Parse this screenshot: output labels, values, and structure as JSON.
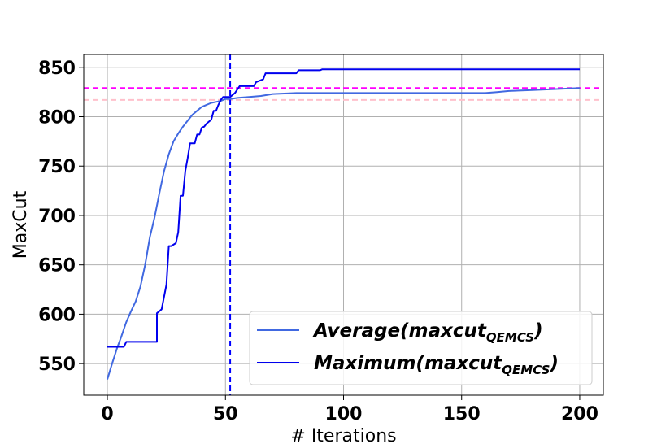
{
  "chart_data": {
    "type": "line",
    "xlabel": "# Iterations",
    "ylabel": "MaxCut",
    "xlim": [
      -10,
      210
    ],
    "ylim": [
      518,
      863
    ],
    "xticks": [
      0,
      50,
      100,
      150,
      200
    ],
    "yticks": [
      550,
      600,
      650,
      700,
      750,
      800,
      850
    ],
    "grid": true,
    "legend_position": "lower-right",
    "series": [
      {
        "name": "Average(maxcut",
        "name_subscript": "QEMCS",
        "name_close": ")",
        "color": "#4169e1",
        "x": [
          0,
          2,
          4,
          6,
          8,
          10,
          12,
          14,
          16,
          18,
          20,
          22,
          24,
          26,
          28,
          30,
          32,
          34,
          36,
          38,
          40,
          42,
          44,
          46,
          48,
          50,
          52,
          55,
          60,
          65,
          70,
          80,
          90,
          100,
          120,
          140,
          160,
          165,
          170,
          180,
          190,
          200
        ],
        "y": [
          534,
          550,
          565,
          578,
          592,
          603,
          613,
          628,
          650,
          678,
          698,
          722,
          745,
          762,
          775,
          783,
          790,
          796,
          802,
          806,
          810,
          812,
          814,
          815,
          816,
          818,
          818,
          819,
          820,
          821,
          823,
          824,
          824,
          824,
          824,
          824,
          824,
          825,
          826,
          827,
          828,
          829
        ]
      },
      {
        "name": "Maximum(maxcut",
        "name_subscript": "QEMCS",
        "name_close": ")",
        "color": "#0000ee",
        "x": [
          0,
          7,
          8,
          14,
          15,
          21,
          21,
          23,
          25,
          26,
          27,
          29,
          30,
          31,
          32,
          33,
          34,
          35,
          36,
          37,
          38,
          39,
          40,
          41,
          42,
          44,
          45,
          46,
          47,
          48,
          49,
          50,
          51,
          52,
          54,
          56,
          58,
          62,
          63,
          66,
          67,
          70,
          71,
          80,
          81,
          90,
          91,
          100,
          150,
          200
        ],
        "y": [
          567,
          567,
          572,
          572,
          572,
          572,
          601,
          605,
          630,
          669,
          669,
          672,
          683,
          720,
          720,
          745,
          758,
          773,
          773,
          773,
          782,
          782,
          789,
          790,
          793,
          797,
          806,
          806,
          812,
          817,
          820,
          820,
          820,
          820,
          824,
          831,
          831,
          831,
          835,
          838,
          844,
          844,
          844,
          844,
          847,
          847,
          848,
          848,
          848,
          848
        ]
      }
    ],
    "reference_lines": [
      {
        "orientation": "horizontal",
        "value": 829,
        "color": "#ff00ff",
        "style": "dashed"
      },
      {
        "orientation": "horizontal",
        "value": 817,
        "color": "#ffc0cb",
        "style": "dashed"
      },
      {
        "orientation": "vertical",
        "value": 52,
        "color": "#0000ff",
        "style": "dashed"
      }
    ]
  }
}
